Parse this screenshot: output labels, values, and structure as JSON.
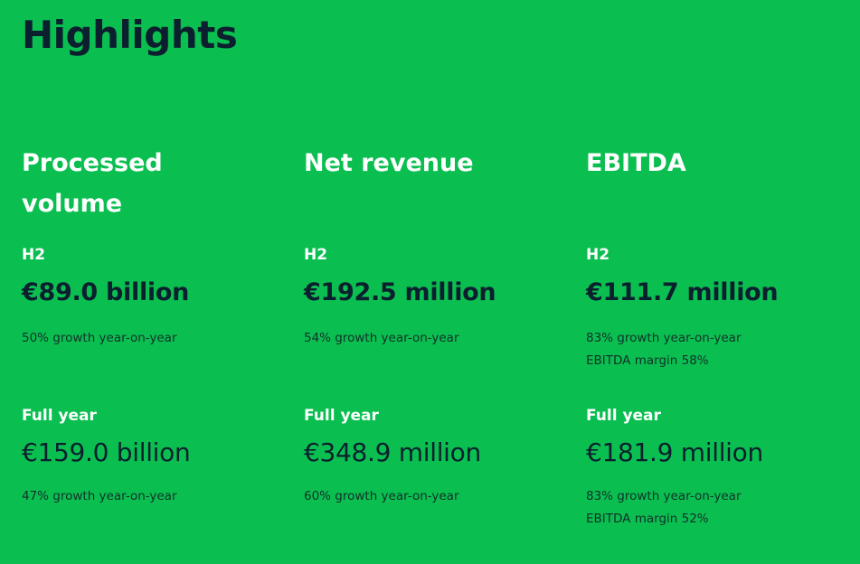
{
  "title": "Highlights",
  "columns": [
    {
      "heading": "Processed volume",
      "h2_label": "H2",
      "h2_value": "€89.0 billion",
      "h2_notes": [
        "50% growth year-on-year"
      ],
      "fy_label": "Full year",
      "fy_value": "€159.0 billion",
      "fy_notes": [
        "47% growth year-on-year"
      ]
    },
    {
      "heading": "Net revenue",
      "h2_label": "H2",
      "h2_value": "€192.5 million",
      "h2_notes": [
        "54% growth year-on-year"
      ],
      "fy_label": "Full year",
      "fy_value": "€348.9 million",
      "fy_notes": [
        "60% growth year-on-year"
      ]
    },
    {
      "heading": "EBITDA",
      "h2_label": "H2",
      "h2_value": "€111.7 million",
      "h2_notes": [
        "83% growth year-on-year",
        "EBITDA margin 58%"
      ],
      "fy_label": "Full year",
      "fy_value": "€181.9 million",
      "fy_notes": [
        "83% growth year-on-year",
        "EBITDA margin 52%"
      ]
    }
  ]
}
